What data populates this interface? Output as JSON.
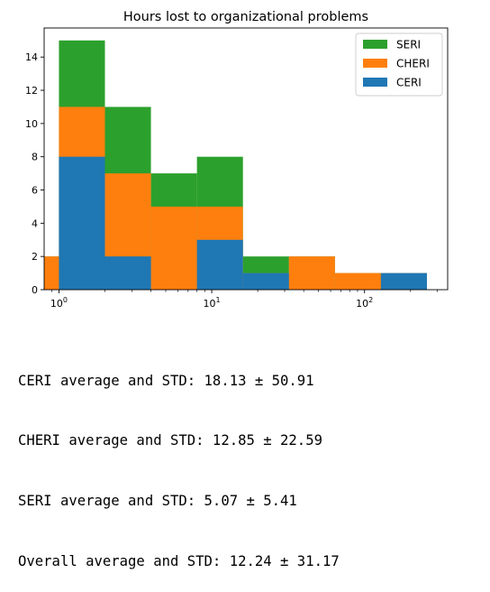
{
  "chart_data": {
    "type": "bar",
    "subtype": "stacked-histogram",
    "title": "Hours lost to organizational problems",
    "xlabel": "",
    "ylabel": "",
    "xscale": "log",
    "xlim": [
      0.8,
      350
    ],
    "ylim": [
      0,
      15.75
    ],
    "bin_edges": [
      0.5,
      1,
      2,
      4,
      8,
      16,
      32,
      64,
      128,
      256
    ],
    "x_ticks": [
      {
        "value": 1,
        "base": "10",
        "exp": "0"
      },
      {
        "value": 10,
        "base": "10",
        "exp": "1"
      },
      {
        "value": 100,
        "base": "10",
        "exp": "2"
      }
    ],
    "y_ticks": [
      "0",
      "2",
      "4",
      "6",
      "8",
      "10",
      "12",
      "14"
    ],
    "legend_position": "top-right",
    "series": [
      {
        "name": "CERI",
        "color": "#1f77b4",
        "values": [
          0,
          8,
          2,
          0,
          3,
          1,
          0,
          0,
          1
        ]
      },
      {
        "name": "CHERI",
        "color": "#ff7f0e",
        "values": [
          2,
          3,
          5,
          5,
          2,
          0,
          2,
          1,
          0
        ]
      },
      {
        "name": "SERI",
        "color": "#2ca02c",
        "values": [
          0,
          4,
          4,
          2,
          3,
          1,
          0,
          0,
          0
        ]
      }
    ],
    "legend_order": [
      "SERI",
      "CHERI",
      "CERI"
    ]
  },
  "output": {
    "lines": [
      "CERI average and STD: 18.13 ± 50.91",
      "CHERI average and STD: 12.85 ± 22.59",
      "SERI average and STD: 5.07 ± 5.41",
      "Overall average and STD: 12.24 ± 31.17"
    ]
  }
}
